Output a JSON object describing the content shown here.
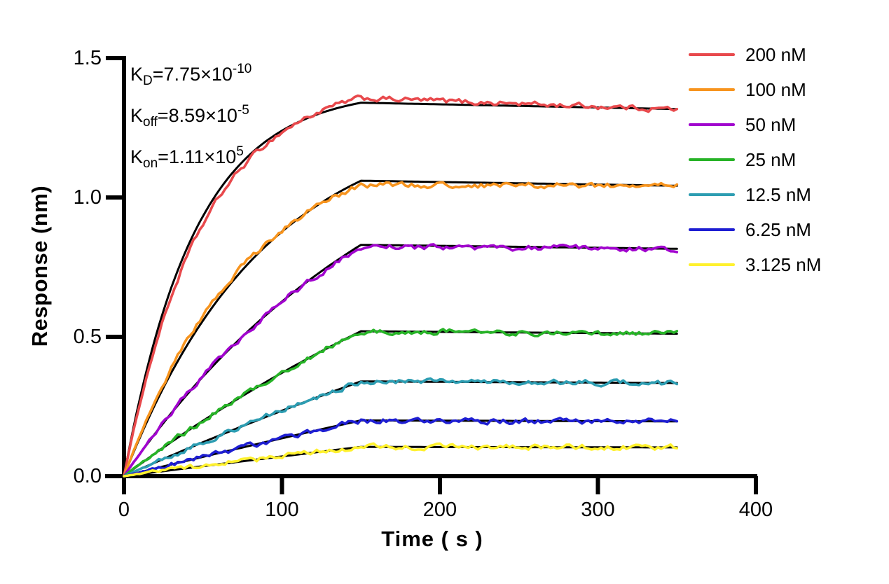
{
  "annotations": {
    "kd": {
      "k": "K",
      "sub": "D",
      "eq": "=",
      "mantissa": "7.75×10",
      "exponent": "-10"
    },
    "koff": {
      "k": "K",
      "sub": "off",
      "eq": "=",
      "mantissa": "8.59×10",
      "exponent": "-5"
    },
    "kon": {
      "k": "K",
      "sub": "on",
      "eq": "=",
      "mantissa": "1.11×10",
      "exponent": "5"
    }
  },
  "chart_data": {
    "type": "line",
    "title": "",
    "xlabel": "Time ( s )",
    "ylabel": "Response (nm)",
    "xlim": [
      0,
      400
    ],
    "ylim": [
      0,
      1.5
    ],
    "x_ticks": {
      "values": [
        0,
        100,
        200,
        300,
        400
      ],
      "labels": [
        "0",
        "100",
        "200",
        "300",
        "400"
      ]
    },
    "y_ticks": {
      "values": [
        0,
        0.5,
        1.0,
        1.5
      ],
      "labels": [
        "0.0",
        "0.5",
        "1.0",
        "1.5"
      ]
    },
    "grid": false,
    "legend_position": "outside-top-right",
    "association_start_s": 0,
    "association_end_s": 150,
    "dissociation_end_s": 350,
    "kinetics_values": {
      "kd_M": 7.75e-10,
      "koff_per_s": 8.59e-05,
      "kon_per_M_s": 111000
    },
    "fit_color": "#000000",
    "axis_color": "#000000",
    "series": [
      {
        "label": "200 nM",
        "concentration_nM": 200,
        "color": "#E8494C",
        "response_at_150s": 1.34
      },
      {
        "label": "100 nM",
        "concentration_nM": 100,
        "color": "#F7941E",
        "response_at_150s": 1.06
      },
      {
        "label": "50 nM",
        "concentration_nM": 50,
        "color": "#A104CE",
        "response_at_150s": 0.83
      },
      {
        "label": "25 nM",
        "concentration_nM": 25,
        "color": "#27B327",
        "response_at_150s": 0.52
      },
      {
        "label": "12.5 nM",
        "concentration_nM": 12.5,
        "color": "#2D9DB2",
        "response_at_150s": 0.34
      },
      {
        "label": "6.25 nM",
        "concentration_nM": 6.25,
        "color": "#1E1ED2",
        "response_at_150s": 0.2
      },
      {
        "label": "3.125 nM",
        "concentration_nM": 3.125,
        "color": "#FFF12E",
        "response_at_150s": 0.105
      }
    ]
  }
}
